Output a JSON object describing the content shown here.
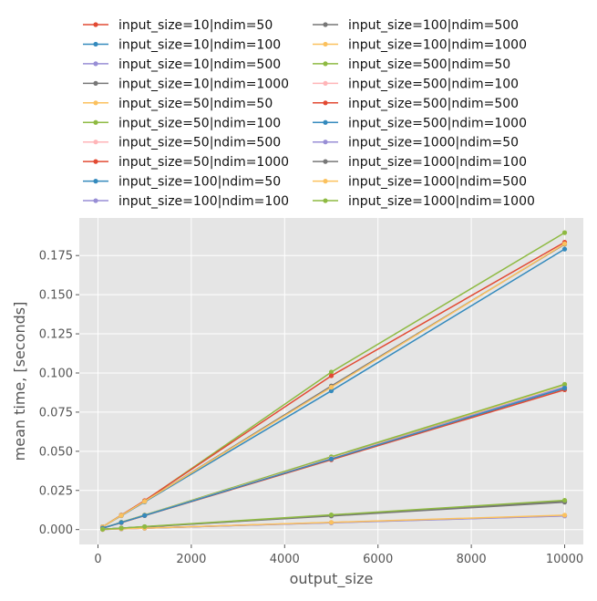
{
  "chart_data": {
    "type": "line",
    "title": "",
    "xlabel": "output_size",
    "ylabel": "mean time, [seconds]",
    "xlim": [
      -400,
      10400
    ],
    "ylim": [
      -0.0095,
      0.199
    ],
    "x_ticks": [
      0,
      2000,
      4000,
      6000,
      8000,
      10000
    ],
    "x_tick_labels": [
      "0",
      "2000",
      "4000",
      "6000",
      "8000",
      "10000"
    ],
    "y_ticks": [
      0.0,
      0.025,
      0.05,
      0.075,
      0.1,
      0.125,
      0.15,
      0.175
    ],
    "y_tick_labels": [
      "0.000",
      "0.025",
      "0.050",
      "0.075",
      "0.100",
      "0.125",
      "0.150",
      "0.175"
    ],
    "grid": true,
    "style": "ggplot",
    "legend_position": "top, outside the plot, 2 columns",
    "x": [
      100,
      500,
      1000,
      5000,
      10000
    ],
    "series": [
      {
        "name": "input_size=10|ndim=50",
        "color": "#E24A33",
        "values": [
          0.0001,
          0.0005,
          0.0009,
          0.0045,
          0.0089
        ]
      },
      {
        "name": "input_size=10|ndim=100",
        "color": "#348ABD",
        "values": [
          0.0002,
          0.0009,
          0.0018,
          0.0089,
          0.0179
        ]
      },
      {
        "name": "input_size=10|ndim=500",
        "color": "#988ED5",
        "values": [
          0.0001,
          0.0004,
          0.0009,
          0.0044,
          0.0088
        ]
      },
      {
        "name": "input_size=10|ndim=1000",
        "color": "#777777",
        "values": [
          0.0002,
          0.0009,
          0.0018,
          0.009,
          0.0181
        ]
      },
      {
        "name": "input_size=50|ndim=50",
        "color": "#FBC15E",
        "values": [
          0.0009,
          0.0046,
          0.0092,
          0.0458,
          0.0925
        ]
      },
      {
        "name": "input_size=50|ndim=100",
        "color": "#8EBA42",
        "values": [
          0.0018,
          0.0092,
          0.0183,
          0.1006,
          0.1896
        ]
      },
      {
        "name": "input_size=50|ndim=500",
        "color": "#FFB5B8",
        "values": [
          0.0009,
          0.0045,
          0.009,
          0.0452,
          0.0905
        ]
      },
      {
        "name": "input_size=50|ndim=1000",
        "color": "#E24A33",
        "values": [
          0.0018,
          0.0092,
          0.0185,
          0.0982,
          0.1835
        ]
      },
      {
        "name": "input_size=100|ndim=50",
        "color": "#348ABD",
        "values": [
          0.0018,
          0.0088,
          0.0177,
          0.0886,
          0.1791
        ]
      },
      {
        "name": "input_size=100|ndim=100",
        "color": "#988ED5",
        "values": [
          0.0009,
          0.0046,
          0.0091,
          0.0455,
          0.0911
        ]
      },
      {
        "name": "input_size=100|ndim=500",
        "color": "#777777",
        "values": [
          0.0018,
          0.009,
          0.018,
          0.0917,
          0.1822
        ]
      },
      {
        "name": "input_size=100|ndim=1000",
        "color": "#FBC15E",
        "values": [
          0.0018,
          0.009,
          0.018,
          0.0909,
          0.1825
        ]
      },
      {
        "name": "input_size=500|ndim=50",
        "color": "#8EBA42",
        "values": [
          0.0009,
          0.0047,
          0.0093,
          0.0465,
          0.0928
        ]
      },
      {
        "name": "input_size=500|ndim=100",
        "color": "#FFB5B8",
        "values": [
          0.0009,
          0.0045,
          0.0091,
          0.0455,
          0.0902
        ]
      },
      {
        "name": "input_size=500|ndim=500",
        "color": "#E24A33",
        "values": [
          0.0009,
          0.0044,
          0.0089,
          0.0446,
          0.0893
        ]
      },
      {
        "name": "input_size=500|ndim=1000",
        "color": "#348ABD",
        "values": [
          0.0009,
          0.0045,
          0.009,
          0.0451,
          0.0903
        ]
      },
      {
        "name": "input_size=1000|ndim=50",
        "color": "#988ED5",
        "values": [
          0.0001,
          0.0004,
          0.0009,
          0.0043,
          0.0087
        ]
      },
      {
        "name": "input_size=1000|ndim=100",
        "color": "#777777",
        "values": [
          0.0002,
          0.0009,
          0.0017,
          0.0087,
          0.0175
        ]
      },
      {
        "name": "input_size=1000|ndim=500",
        "color": "#FBC15E",
        "values": [
          0.0001,
          0.0005,
          0.0009,
          0.0046,
          0.0092
        ]
      },
      {
        "name": "input_size=1000|ndim=1000",
        "color": "#8EBA42",
        "values": [
          0.0002,
          0.0009,
          0.0019,
          0.0094,
          0.0187
        ]
      }
    ]
  }
}
